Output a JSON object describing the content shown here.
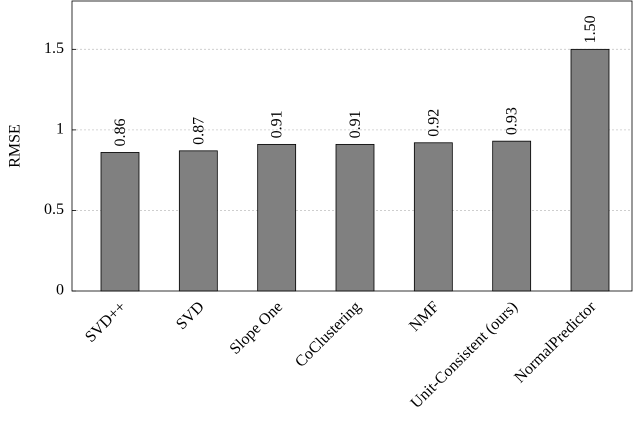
{
  "chart_data": {
    "type": "bar",
    "y_label": "RMSE",
    "categories": [
      "SVD++",
      "SVD",
      "Slope One",
      "CoClustering",
      "NMF",
      "Unit-Consistent (ours)",
      "NormalPredictor"
    ],
    "values": [
      0.86,
      0.87,
      0.91,
      0.91,
      0.92,
      0.93,
      1.5
    ],
    "value_labels": [
      "0.86",
      "0.87",
      "0.91",
      "0.91",
      "0.92",
      "0.93",
      "1.50"
    ],
    "color": "#808080",
    "ylim": [
      0,
      1.8
    ],
    "yticks": [
      0,
      0.5,
      1,
      1.5
    ],
    "grid": true
  }
}
